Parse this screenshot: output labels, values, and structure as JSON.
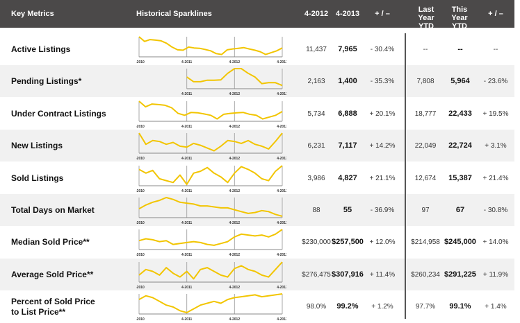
{
  "header": {
    "metric": "Key Metrics",
    "spark": "Historical Sparklines",
    "c1": "4-2012",
    "c2": "4-2013",
    "c3": "+ / –",
    "c4": "Last Year YTD",
    "c5": "This Year YTD",
    "c6": "+ / –"
  },
  "colors": {
    "header_bg": "#4b4949",
    "line": "#f2c500",
    "alt_row": "#f1f1f1"
  },
  "chart_data": {
    "type": "line",
    "x_tick_labels": [
      "4-2010",
      "4-2011",
      "4-2012",
      "4-2013"
    ],
    "rows": [
      {
        "label": "Active Listings",
        "v2012": "11,437",
        "v2013": "7,965",
        "chg": "- 30.4%",
        "lytd": "--",
        "tytd": "--",
        "ychg": "--",
        "start": "4-2010",
        "values": [
          1,
          0.75,
          0.85,
          0.82,
          0.78,
          0.65,
          0.45,
          0.3,
          0.28,
          0.45,
          0.4,
          0.38,
          0.32,
          0.25,
          0.1,
          0.05,
          0.3,
          0.35,
          0.38,
          0.42,
          0.35,
          0.28,
          0.2,
          0.05,
          0.15,
          0.25,
          0.4
        ]
      },
      {
        "label": "Pending Listings*",
        "v2012": "2,163",
        "v2013": "1,400",
        "chg": "- 35.3%",
        "lytd": "7,808",
        "tytd": "5,964",
        "ychg": "- 23.6%",
        "start": "4-2011",
        "values": [
          0.55,
          0.3,
          0.3,
          0.38,
          0.38,
          0.4,
          0.75,
          1,
          1,
          0.75,
          0.55,
          0.2,
          0.25,
          0.25,
          0.1
        ]
      },
      {
        "label": "Under Contract Listings",
        "v2012": "5,734",
        "v2013": "6,888",
        "chg": "+ 20.1%",
        "lytd": "18,777",
        "tytd": "22,433",
        "ychg": "+ 19.5%",
        "start": "4-2010",
        "values": [
          1,
          0.7,
          0.85,
          0.82,
          0.78,
          0.65,
          0.35,
          0.25,
          0.4,
          0.38,
          0.32,
          0.25,
          0.05,
          0.3,
          0.35,
          0.38,
          0.4,
          0.3,
          0.25,
          0.05,
          0.15,
          0.25,
          0.45
        ]
      },
      {
        "label": "New Listings",
        "v2012": "6,231",
        "v2013": "7,117",
        "chg": "+ 14.2%",
        "lytd": "22,049",
        "tytd": "22,724",
        "ychg": "+ 3.1%",
        "start": "4-2010",
        "values": [
          1,
          0.4,
          0.6,
          0.55,
          0.4,
          0.5,
          0.3,
          0.25,
          0.45,
          0.35,
          0.2,
          0.05,
          0.3,
          0.6,
          0.55,
          0.45,
          0.6,
          0.4,
          0.3,
          0.15,
          0.55,
          1
        ]
      },
      {
        "label": "Sold Listings",
        "v2012": "3,986",
        "v2013": "4,827",
        "chg": "+ 21.1%",
        "lytd": "12,674",
        "tytd": "15,387",
        "ychg": "+ 21.4%",
        "start": "4-2010",
        "values": [
          0.8,
          0.6,
          0.75,
          0.3,
          0.2,
          0.1,
          0.5,
          0,
          0.6,
          0.7,
          0.9,
          0.6,
          0.4,
          0.1,
          0.6,
          0.95,
          0.8,
          0.6,
          0.3,
          0.2,
          0.7,
          1
        ]
      },
      {
        "label": "Total Days on Market",
        "v2012": "88",
        "v2013": "55",
        "chg": "- 36.9%",
        "lytd": "97",
        "tytd": "67",
        "ychg": "- 30.8%",
        "start": "4-2010",
        "values": [
          0.4,
          0.6,
          0.75,
          0.85,
          1,
          0.9,
          0.75,
          0.7,
          0.65,
          0.55,
          0.55,
          0.5,
          0.45,
          0.45,
          0.35,
          0.25,
          0.15,
          0.2,
          0.3,
          0.25,
          0.1,
          0
        ]
      },
      {
        "label": "Median Sold Price**",
        "v2012": "$230,000",
        "v2013": "$257,500",
        "chg": "+ 12.0%",
        "lytd": "$214,958",
        "tytd": "$245,000",
        "ychg": "+ 14.0%",
        "start": "4-2010",
        "values": [
          0.4,
          0.5,
          0.45,
          0.35,
          0.4,
          0.2,
          0.25,
          0.3,
          0.35,
          0.3,
          0.2,
          0.15,
          0.25,
          0.35,
          0.6,
          0.75,
          0.7,
          0.65,
          0.7,
          0.6,
          0.75,
          1
        ]
      },
      {
        "label": "Average Sold Price**",
        "v2012": "$276,475",
        "v2013": "$307,916",
        "chg": "+ 11.4%",
        "lytd": "$260,234",
        "tytd": "$291,225",
        "ychg": "+ 11.9%",
        "start": "4-2010",
        "values": [
          0.3,
          0.6,
          0.5,
          0.3,
          0.7,
          0.4,
          0.2,
          0.5,
          0.1,
          0.6,
          0.7,
          0.5,
          0.3,
          0.2,
          0.65,
          0.8,
          0.6,
          0.5,
          0.3,
          0.2,
          0.6,
          1
        ]
      },
      {
        "label": "Percent of Sold Price to List Price**",
        "v2012": "98.0%",
        "v2013": "99.2%",
        "chg": "+ 1.2%",
        "lytd": "97.7%",
        "tytd": "99.1%",
        "ychg": "+ 1.4%",
        "start": "4-2010",
        "values": [
          0.7,
          0.9,
          0.8,
          0.6,
          0.4,
          0.3,
          0.1,
          0,
          0.2,
          0.4,
          0.5,
          0.6,
          0.5,
          0.7,
          0.8,
          0.85,
          0.9,
          0.95,
          0.85,
          0.9,
          0.95,
          1
        ]
      }
    ]
  }
}
